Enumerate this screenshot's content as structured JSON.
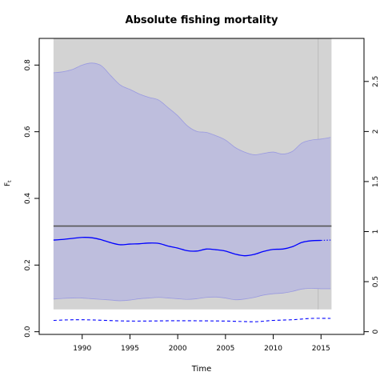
{
  "chart_data": {
    "type": "line",
    "title": "Absolute fishing mortality",
    "xlabel": "Time",
    "ylabel": "F",
    "ylabel_sub": "t",
    "xlim": [
      1985.5,
      2019.5
    ],
    "ylim": [
      -0.008,
      0.88
    ],
    "y2lim": [
      -0.027,
      2.93
    ],
    "xticks": [
      "1990",
      "1995",
      "2000",
      "2005",
      "2010",
      "2015"
    ],
    "yticks": [
      "0.0",
      "0.2",
      "0.4",
      "0.6",
      "0.8"
    ],
    "y2ticks": [
      "0",
      "0.5",
      "1",
      "1.5",
      "2",
      "2.5"
    ],
    "grey_region": {
      "x": [
        1987,
        2016.1
      ],
      "y": [
        0.067,
        0.88
      ]
    },
    "reference_vline": 2014.7,
    "reference_hline": 0.317,
    "series": [
      {
        "role": "upper_ci",
        "x": [
          1987,
          1988,
          1989,
          1990,
          1991,
          1992,
          1993,
          1994,
          1995,
          1996,
          1997,
          1998,
          1999,
          2000,
          2001,
          2002,
          2003,
          2004,
          2005,
          2006,
          2007,
          2008,
          2009,
          2010,
          2011,
          2012,
          2013,
          2014,
          2015,
          2016
        ],
        "values": [
          0.777,
          0.78,
          0.787,
          0.8,
          0.806,
          0.798,
          0.768,
          0.74,
          0.727,
          0.713,
          0.703,
          0.695,
          0.672,
          0.648,
          0.618,
          0.601,
          0.598,
          0.588,
          0.575,
          0.553,
          0.539,
          0.531,
          0.535,
          0.539,
          0.533,
          0.541,
          0.566,
          0.575,
          0.578,
          0.583
        ]
      },
      {
        "role": "lower_ci",
        "x": [
          1987,
          1988,
          1989,
          1990,
          1991,
          1992,
          1993,
          1994,
          1995,
          1996,
          1997,
          1998,
          1999,
          2000,
          2001,
          2002,
          2003,
          2004,
          2005,
          2006,
          2007,
          2008,
          2009,
          2010,
          2011,
          2012,
          2013,
          2014,
          2015,
          2016
        ],
        "values": [
          0.098,
          0.1,
          0.101,
          0.101,
          0.099,
          0.097,
          0.095,
          0.093,
          0.095,
          0.099,
          0.101,
          0.103,
          0.101,
          0.099,
          0.097,
          0.099,
          0.103,
          0.104,
          0.101,
          0.096,
          0.098,
          0.103,
          0.11,
          0.114,
          0.116,
          0.121,
          0.128,
          0.13,
          0.129,
          0.129
        ]
      },
      {
        "role": "estimate",
        "x": [
          1987,
          1988,
          1989,
          1990,
          1991,
          1992,
          1993,
          1994,
          1995,
          1996,
          1997,
          1998,
          1999,
          2000,
          2001,
          2002,
          2003,
          2004,
          2005,
          2006,
          2007,
          2008,
          2009,
          2010,
          2011,
          2012,
          2013,
          2014,
          2015
        ],
        "values": [
          0.275,
          0.277,
          0.28,
          0.283,
          0.282,
          0.276,
          0.267,
          0.261,
          0.263,
          0.264,
          0.266,
          0.265,
          0.257,
          0.251,
          0.243,
          0.242,
          0.248,
          0.246,
          0.242,
          0.233,
          0.228,
          0.232,
          0.241,
          0.247,
          0.248,
          0.255,
          0.268,
          0.273,
          0.274
        ]
      },
      {
        "role": "forecast",
        "x": [
          2015,
          2016
        ],
        "values": [
          0.274,
          0.275
        ]
      },
      {
        "role": "bottom_dashed",
        "x": [
          1987,
          1990,
          1995,
          2000,
          2005,
          2008,
          2010,
          2012,
          2014,
          2016
        ],
        "values": [
          0.034,
          0.036,
          0.032,
          0.033,
          0.032,
          0.03,
          0.034,
          0.036,
          0.04,
          0.04
        ]
      }
    ],
    "colors": {
      "grey": "#d3d3d3",
      "band": "#bebedd",
      "band_edge": "#9a9ae0",
      "line": "#0000ff",
      "hline": "#555555",
      "vline": "#bbbbbb"
    }
  }
}
